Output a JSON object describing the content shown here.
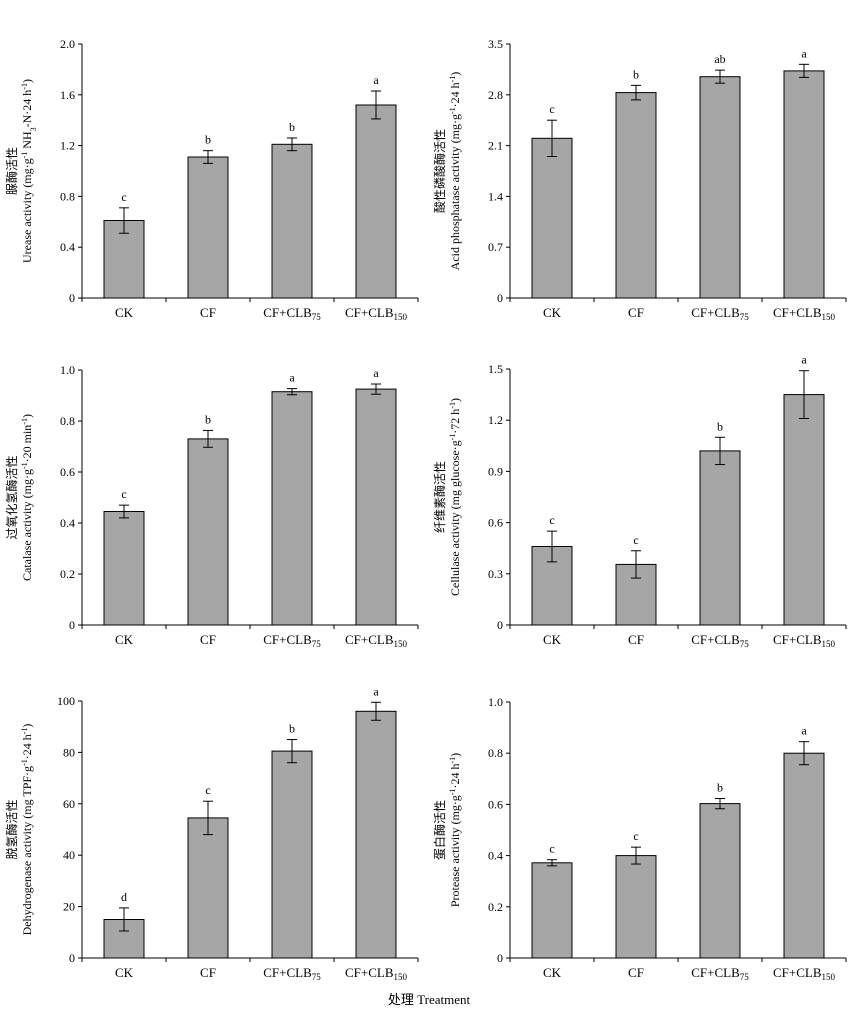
{
  "chart_data": [
    {
      "type": "bar",
      "ylabel_cn": "脲酶活性",
      "ylabel_en": "Urease activity (mg·g-1 NH3-N·24 h-1)",
      "ylabel_parts": [
        {
          "t": "Urease activity (mg·g"
        },
        {
          "t": "-1",
          "sup": true
        },
        {
          "t": " NH"
        },
        {
          "t": "3",
          "sub": true
        },
        {
          "t": "-N·24 h"
        },
        {
          "t": "-1",
          "sup": true
        },
        {
          "t": ")"
        }
      ],
      "ylim": [
        0,
        2.0
      ],
      "yticks": [
        "0",
        "0.4",
        "0.8",
        "1.2",
        "1.6",
        "2.0"
      ],
      "yticks_values": [
        0,
        0.4,
        0.8,
        1.2,
        1.6,
        2.0
      ],
      "categories": [
        "CK",
        "CF",
        "CF+CLB75",
        "CF+CLB150"
      ],
      "values": [
        0.61,
        1.11,
        1.21,
        1.52
      ],
      "errors": [
        0.1,
        0.05,
        0.05,
        0.11
      ],
      "letters": [
        "c",
        "b",
        "b",
        "a"
      ]
    },
    {
      "type": "bar",
      "ylabel_cn": "酸性磷酸酶活性",
      "ylabel_en": "Acid phosphatase activity (mg·g-1·24 h-1)",
      "ylabel_parts": [
        {
          "t": "Acid phosphatase activity (mg·g"
        },
        {
          "t": "-1",
          "sup": true
        },
        {
          "t": "·24 h"
        },
        {
          "t": "-1",
          "sup": true
        },
        {
          "t": ")"
        }
      ],
      "ylim": [
        0,
        3.5
      ],
      "yticks": [
        "0",
        "0.7",
        "1.4",
        "2.1",
        "2.8",
        "3.5"
      ],
      "yticks_values": [
        0,
        0.7,
        1.4,
        2.1,
        2.8,
        3.5
      ],
      "categories": [
        "CK",
        "CF",
        "CF+CLB75",
        "CF+CLB150"
      ],
      "values": [
        2.2,
        2.83,
        3.05,
        3.13
      ],
      "errors": [
        0.25,
        0.1,
        0.09,
        0.09
      ],
      "letters": [
        "c",
        "b",
        "ab",
        "a"
      ]
    },
    {
      "type": "bar",
      "ylabel_cn": "过氧化氢酶活性",
      "ylabel_en": "Catalase activity (mg·g-1·20 min-1)",
      "ylabel_parts": [
        {
          "t": "Catalase activity (mg·g"
        },
        {
          "t": "-1",
          "sup": true
        },
        {
          "t": "·20 min"
        },
        {
          "t": "-1",
          "sup": true
        },
        {
          "t": ")"
        }
      ],
      "ylim": [
        0,
        1.0
      ],
      "yticks": [
        "0",
        "0.2",
        "0.4",
        "0.6",
        "0.8",
        "1.0"
      ],
      "yticks_values": [
        0,
        0.2,
        0.4,
        0.6,
        0.8,
        1.0
      ],
      "categories": [
        "CK",
        "CF",
        "CF+CLB75",
        "CF+CLB150"
      ],
      "values": [
        0.445,
        0.73,
        0.915,
        0.925
      ],
      "errors": [
        0.025,
        0.033,
        0.012,
        0.02
      ],
      "letters": [
        "c",
        "b",
        "a",
        "a"
      ]
    },
    {
      "type": "bar",
      "ylabel_cn": "纤维素酶活性",
      "ylabel_en": "Cellulase activity (mg glucose·g-1·72 h-1)",
      "ylabel_parts": [
        {
          "t": "Cellulase activity (mg glucose·g"
        },
        {
          "t": "-1",
          "sup": true
        },
        {
          "t": "·72 h"
        },
        {
          "t": "-1",
          "sup": true
        },
        {
          "t": ")"
        }
      ],
      "ylim": [
        0,
        1.5
      ],
      "yticks": [
        "0",
        "0.3",
        "0.6",
        "0.9",
        "1.2",
        "1.5"
      ],
      "yticks_values": [
        0,
        0.3,
        0.6,
        0.9,
        1.2,
        1.5
      ],
      "categories": [
        "CK",
        "CF",
        "CF+CLB75",
        "CF+CLB150"
      ],
      "values": [
        0.46,
        0.355,
        1.02,
        1.35
      ],
      "errors": [
        0.09,
        0.08,
        0.08,
        0.14
      ],
      "letters": [
        "c",
        "c",
        "b",
        "a"
      ]
    },
    {
      "type": "bar",
      "ylabel_cn": "脱氢酶活性",
      "ylabel_en": "Dehydrogenase activity (mg TPF·g-1·24 h-1)",
      "ylabel_parts": [
        {
          "t": "Dehydrogenase activity (mg TPF·g"
        },
        {
          "t": "-1",
          "sup": true
        },
        {
          "t": "·24 h"
        },
        {
          "t": "-1",
          "sup": true
        },
        {
          "t": ")"
        }
      ],
      "ylim": [
        0,
        100
      ],
      "yticks": [
        "0",
        "20",
        "40",
        "60",
        "80",
        "100"
      ],
      "yticks_values": [
        0,
        20,
        40,
        60,
        80,
        100
      ],
      "categories": [
        "CK",
        "CF",
        "CF+CLB75",
        "CF+CLB150"
      ],
      "values": [
        15,
        54.5,
        80.5,
        96
      ],
      "errors": [
        4.5,
        6.5,
        4.5,
        3.5
      ],
      "letters": [
        "d",
        "c",
        "b",
        "a"
      ]
    },
    {
      "type": "bar",
      "ylabel_cn": "蛋白酶活性",
      "ylabel_en": "Protease activity (mg·g-1·24 h-1)",
      "ylabel_parts": [
        {
          "t": "Protease activity (mg·g"
        },
        {
          "t": "-1",
          "sup": true
        },
        {
          "t": "·24 h"
        },
        {
          "t": "-1",
          "sup": true
        },
        {
          "t": ")"
        }
      ],
      "ylim": [
        0,
        1.0
      ],
      "yticks": [
        "0",
        "0.2",
        "0.4",
        "0.6",
        "0.8",
        "1.0"
      ],
      "yticks_values": [
        0,
        0.2,
        0.4,
        0.6,
        0.8,
        1.0
      ],
      "categories": [
        "CK",
        "CF",
        "CF+CLB75",
        "CF+CLB150"
      ],
      "values": [
        0.372,
        0.4,
        0.603,
        0.8
      ],
      "errors": [
        0.012,
        0.033,
        0.02,
        0.045
      ],
      "letters": [
        "c",
        "c",
        "b",
        "a"
      ]
    }
  ],
  "category_labels": [
    {
      "base": "CK",
      "sub": ""
    },
    {
      "base": "CF",
      "sub": ""
    },
    {
      "base": "CF+CLB",
      "sub": "75"
    },
    {
      "base": "CF+CLB",
      "sub": "150"
    }
  ],
  "xlabel": "处理 Treatment",
  "colors": {
    "bar_fill": "#a6a6a6",
    "bar_stroke": "#000000",
    "axis": "#000000"
  }
}
